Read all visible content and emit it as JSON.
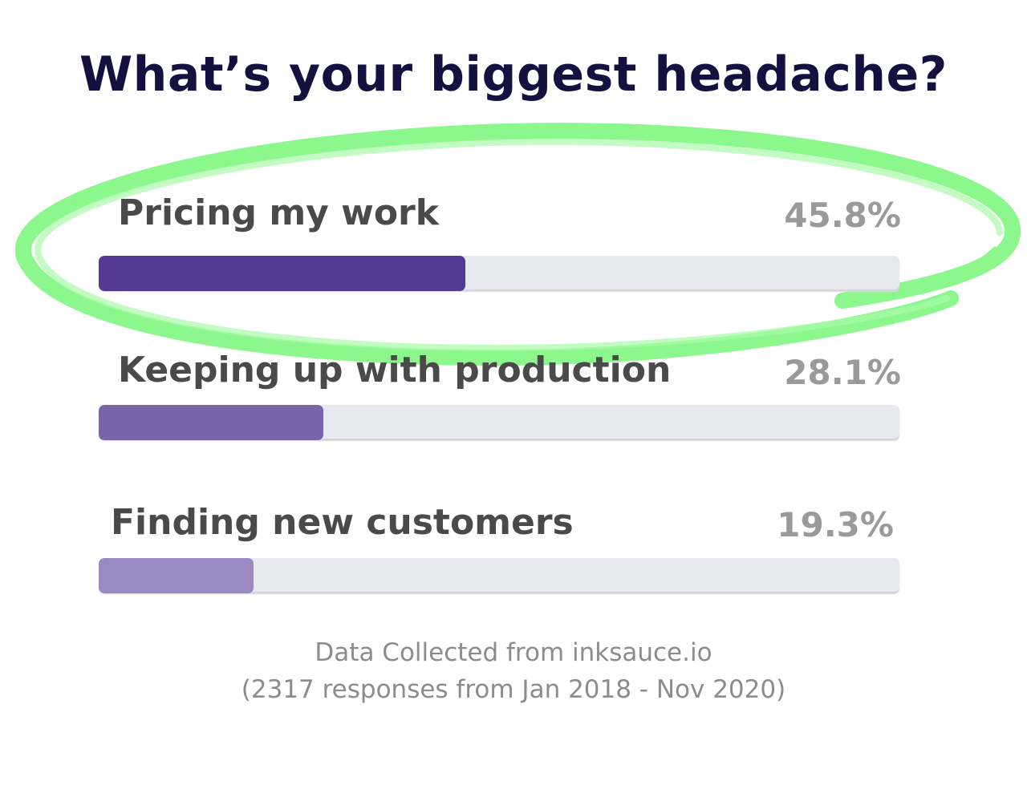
{
  "chart_data": {
    "type": "bar",
    "orientation": "horizontal",
    "title": "What’s your biggest headache?",
    "categories": [
      "Pricing my work",
      "Keeping up with production",
      "Finding new customers"
    ],
    "values": [
      45.8,
      28.1,
      19.3
    ],
    "value_labels": [
      "45.8%",
      "28.1%",
      "19.3%"
    ],
    "xlim": [
      0,
      100
    ],
    "grid": false,
    "legend": "none",
    "highlighted_category": "Pricing my work",
    "footnote": [
      "Data Collected from inksauce.io",
      "(2317 responses from Jan 2018 - Nov 2020)"
    ]
  },
  "colors": {
    "title": "#14103f",
    "label": "#4a4a4a",
    "value": "#9a9a9a",
    "track": "#e8e9ee",
    "bars": [
      "#553a93",
      "#7a64aa",
      "#9a89c2"
    ],
    "highlight": "#8cf78c",
    "footnote": "#8c8c8c"
  }
}
